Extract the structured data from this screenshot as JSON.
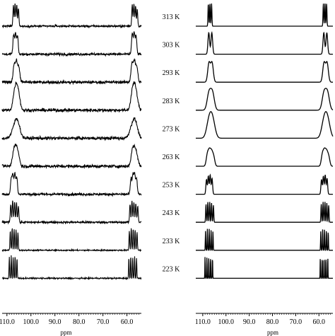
{
  "chart_data": [
    {
      "type": "line",
      "xlabel": "ppm",
      "ylabel": "",
      "x_reversed": true,
      "xlim": [
        112,
        54
      ],
      "xticks": [
        "110.0",
        "100.0",
        "90.0",
        "80.0",
        "70.0",
        "60.0"
      ],
      "series": [
        {
          "temperature": "313 K",
          "kind": "experimental",
          "peaks": [
            {
              "ppm": 107.3,
              "height": 0.9,
              "width": 0.2
            },
            {
              "ppm": 106.6,
              "height": 1.0,
              "width": 0.2
            },
            {
              "ppm": 105.9,
              "height": 0.95,
              "width": 0.2
            },
            {
              "ppm": 105.2,
              "height": 0.8,
              "width": 0.2
            },
            {
              "ppm": 57.8,
              "height": 0.95,
              "width": 0.2
            },
            {
              "ppm": 57.1,
              "height": 1.0,
              "width": 0.2
            },
            {
              "ppm": 56.4,
              "height": 0.9,
              "width": 0.2
            },
            {
              "ppm": 55.7,
              "height": 0.75,
              "width": 0.2
            }
          ],
          "noise": 0.07
        },
        {
          "temperature": "303 K",
          "kind": "experimental",
          "peaks": [
            {
              "ppm": 107.2,
              "height": 0.85,
              "width": 0.3
            },
            {
              "ppm": 106.4,
              "height": 0.9,
              "width": 0.3
            },
            {
              "ppm": 105.6,
              "height": 0.8,
              "width": 0.3
            },
            {
              "ppm": 57.8,
              "height": 0.9,
              "width": 0.3
            },
            {
              "ppm": 57.0,
              "height": 0.95,
              "width": 0.3
            },
            {
              "ppm": 56.2,
              "height": 0.8,
              "width": 0.3
            }
          ],
          "noise": 0.09
        },
        {
          "temperature": "293 K",
          "kind": "experimental",
          "peaks": [
            {
              "ppm": 107.0,
              "height": 0.75,
              "width": 0.45
            },
            {
              "ppm": 106.0,
              "height": 0.85,
              "width": 0.45
            },
            {
              "ppm": 105.0,
              "height": 0.6,
              "width": 0.45
            },
            {
              "ppm": 57.9,
              "height": 0.8,
              "width": 0.45
            },
            {
              "ppm": 56.9,
              "height": 0.85,
              "width": 0.45
            },
            {
              "ppm": 55.9,
              "height": 0.65,
              "width": 0.45
            }
          ],
          "noise": 0.11
        },
        {
          "temperature": "283 K",
          "kind": "experimental",
          "peaks": [
            {
              "ppm": 106.9,
              "height": 0.6,
              "width": 0.7
            },
            {
              "ppm": 106.0,
              "height": 0.7,
              "width": 0.7
            },
            {
              "ppm": 105.1,
              "height": 0.55,
              "width": 0.7
            },
            {
              "ppm": 57.8,
              "height": 0.65,
              "width": 0.7
            },
            {
              "ppm": 56.9,
              "height": 0.7,
              "width": 0.7
            },
            {
              "ppm": 56.0,
              "height": 0.5,
              "width": 0.7
            }
          ],
          "noise": 0.12
        },
        {
          "temperature": "273 K",
          "kind": "experimental",
          "peaks": [
            {
              "ppm": 106.6,
              "height": 0.55,
              "width": 1.2
            },
            {
              "ppm": 105.4,
              "height": 0.45,
              "width": 1.0
            },
            {
              "ppm": 57.6,
              "height": 0.55,
              "width": 1.2
            },
            {
              "ppm": 56.4,
              "height": 0.45,
              "width": 1.0
            }
          ],
          "noise": 0.12
        },
        {
          "temperature": "263 K",
          "kind": "experimental",
          "peaks": [
            {
              "ppm": 107.2,
              "height": 0.55,
              "width": 0.6
            },
            {
              "ppm": 106.3,
              "height": 0.65,
              "width": 0.6
            },
            {
              "ppm": 105.3,
              "height": 0.5,
              "width": 0.6
            },
            {
              "ppm": 57.8,
              "height": 0.55,
              "width": 0.6
            },
            {
              "ppm": 56.9,
              "height": 0.6,
              "width": 0.6
            },
            {
              "ppm": 55.9,
              "height": 0.45,
              "width": 0.6
            }
          ],
          "noise": 0.12
        },
        {
          "temperature": "253 K",
          "kind": "experimental",
          "peaks": [
            {
              "ppm": 108.2,
              "height": 0.7,
              "width": 0.3
            },
            {
              "ppm": 107.5,
              "height": 0.85,
              "width": 0.3
            },
            {
              "ppm": 106.7,
              "height": 0.9,
              "width": 0.3
            },
            {
              "ppm": 105.9,
              "height": 0.75,
              "width": 0.3
            },
            {
              "ppm": 58.3,
              "height": 0.7,
              "width": 0.3
            },
            {
              "ppm": 57.5,
              "height": 0.85,
              "width": 0.3
            },
            {
              "ppm": 56.8,
              "height": 0.9,
              "width": 0.3
            },
            {
              "ppm": 56.0,
              "height": 0.7,
              "width": 0.3
            }
          ],
          "noise": 0.09
        },
        {
          "temperature": "243 K",
          "kind": "experimental",
          "peaks": [
            {
              "ppm": 108.4,
              "height": 0.8,
              "width": 0.2
            },
            {
              "ppm": 107.6,
              "height": 0.95,
              "width": 0.2
            },
            {
              "ppm": 106.8,
              "height": 0.9,
              "width": 0.2
            },
            {
              "ppm": 106.0,
              "height": 0.85,
              "width": 0.2
            },
            {
              "ppm": 105.2,
              "height": 0.7,
              "width": 0.2
            },
            {
              "ppm": 58.7,
              "height": 0.8,
              "width": 0.2
            },
            {
              "ppm": 57.9,
              "height": 0.95,
              "width": 0.2
            },
            {
              "ppm": 57.1,
              "height": 0.9,
              "width": 0.2
            },
            {
              "ppm": 56.3,
              "height": 0.85,
              "width": 0.2
            },
            {
              "ppm": 55.5,
              "height": 0.7,
              "width": 0.2
            }
          ],
          "noise": 0.08
        },
        {
          "temperature": "233 K",
          "kind": "experimental",
          "peaks": [
            {
              "ppm": 108.6,
              "height": 0.85,
              "width": 0.15
            },
            {
              "ppm": 107.8,
              "height": 1.0,
              "width": 0.15
            },
            {
              "ppm": 107.0,
              "height": 0.95,
              "width": 0.15
            },
            {
              "ppm": 106.2,
              "height": 0.9,
              "width": 0.15
            },
            {
              "ppm": 105.4,
              "height": 0.8,
              "width": 0.15
            },
            {
              "ppm": 59.0,
              "height": 0.85,
              "width": 0.15
            },
            {
              "ppm": 58.2,
              "height": 1.0,
              "width": 0.15
            },
            {
              "ppm": 57.4,
              "height": 0.95,
              "width": 0.15
            },
            {
              "ppm": 56.6,
              "height": 0.9,
              "width": 0.15
            },
            {
              "ppm": 55.8,
              "height": 0.8,
              "width": 0.15
            }
          ],
          "noise": 0.05
        },
        {
          "temperature": "223 K",
          "kind": "experimental",
          "peaks": [
            {
              "ppm": 109.0,
              "height": 0.95,
              "width": 0.12
            },
            {
              "ppm": 108.2,
              "height": 1.0,
              "width": 0.12
            },
            {
              "ppm": 107.4,
              "height": 0.95,
              "width": 0.12
            },
            {
              "ppm": 106.6,
              "height": 1.0,
              "width": 0.12
            },
            {
              "ppm": 105.8,
              "height": 0.9,
              "width": 0.12
            },
            {
              "ppm": 59.2,
              "height": 0.9,
              "width": 0.12
            },
            {
              "ppm": 58.4,
              "height": 1.0,
              "width": 0.12
            },
            {
              "ppm": 57.6,
              "height": 0.95,
              "width": 0.12
            },
            {
              "ppm": 56.8,
              "height": 1.0,
              "width": 0.12
            },
            {
              "ppm": 56.0,
              "height": 0.9,
              "width": 0.12
            }
          ],
          "noise": 0.05
        }
      ]
    },
    {
      "type": "line",
      "xlabel": "ppm",
      "ylabel": "",
      "x_reversed": true,
      "xlim": [
        113,
        54
      ],
      "xticks": [
        "110.0",
        "100.0",
        "90.0",
        "80.0",
        "70.0",
        "60.0"
      ],
      "series": [
        {
          "temperature": "313 K",
          "kind": "simulated",
          "peaks": [
            {
              "ppm": 107.6,
              "height": 1.0,
              "width": 0.15
            },
            {
              "ppm": 106.9,
              "height": 1.0,
              "width": 0.15
            },
            {
              "ppm": 106.2,
              "height": 1.0,
              "width": 0.15
            },
            {
              "ppm": 58.1,
              "height": 1.0,
              "width": 0.15
            },
            {
              "ppm": 57.4,
              "height": 1.0,
              "width": 0.15
            },
            {
              "ppm": 56.7,
              "height": 1.0,
              "width": 0.15
            }
          ]
        },
        {
          "temperature": "303 K",
          "kind": "simulated",
          "peaks": [
            {
              "ppm": 107.4,
              "height": 0.95,
              "width": 0.35
            },
            {
              "ppm": 106.1,
              "height": 0.95,
              "width": 0.35
            },
            {
              "ppm": 57.9,
              "height": 0.95,
              "width": 0.35
            },
            {
              "ppm": 56.6,
              "height": 0.95,
              "width": 0.35
            }
          ]
        },
        {
          "temperature": "293 K",
          "kind": "simulated",
          "peaks": [
            {
              "ppm": 107.3,
              "height": 0.85,
              "width": 0.55
            },
            {
              "ppm": 106.0,
              "height": 0.85,
              "width": 0.55
            },
            {
              "ppm": 57.8,
              "height": 0.85,
              "width": 0.55
            },
            {
              "ppm": 56.5,
              "height": 0.85,
              "width": 0.55
            }
          ]
        },
        {
          "temperature": "283 K",
          "kind": "simulated",
          "peaks": [
            {
              "ppm": 107.3,
              "height": 0.75,
              "width": 0.8
            },
            {
              "ppm": 105.8,
              "height": 0.75,
              "width": 0.8
            },
            {
              "ppm": 57.8,
              "height": 0.75,
              "width": 0.8
            },
            {
              "ppm": 56.3,
              "height": 0.75,
              "width": 0.8
            }
          ]
        },
        {
          "temperature": "273 K",
          "kind": "simulated",
          "peaks": [
            {
              "ppm": 107.5,
              "height": 0.55,
              "width": 1.0
            },
            {
              "ppm": 106.4,
              "height": 0.6,
              "width": 1.0
            },
            {
              "ppm": 105.4,
              "height": 0.45,
              "width": 1.0
            },
            {
              "ppm": 58.0,
              "height": 0.55,
              "width": 1.0
            },
            {
              "ppm": 56.9,
              "height": 0.6,
              "width": 1.0
            },
            {
              "ppm": 55.9,
              "height": 0.45,
              "width": 1.0
            }
          ]
        },
        {
          "temperature": "263 K",
          "kind": "simulated",
          "peaks": [
            {
              "ppm": 108.0,
              "height": 0.5,
              "width": 0.5
            },
            {
              "ppm": 107.1,
              "height": 0.6,
              "width": 0.5
            },
            {
              "ppm": 106.2,
              "height": 0.55,
              "width": 0.5
            },
            {
              "ppm": 105.3,
              "height": 0.4,
              "width": 0.5
            },
            {
              "ppm": 58.5,
              "height": 0.5,
              "width": 0.5
            },
            {
              "ppm": 57.6,
              "height": 0.6,
              "width": 0.5
            },
            {
              "ppm": 56.7,
              "height": 0.55,
              "width": 0.5
            },
            {
              "ppm": 55.8,
              "height": 0.4,
              "width": 0.5
            }
          ]
        },
        {
          "temperature": "253 K",
          "kind": "simulated",
          "peaks": [
            {
              "ppm": 108.4,
              "height": 0.65,
              "width": 0.25
            },
            {
              "ppm": 107.6,
              "height": 0.8,
              "width": 0.25
            },
            {
              "ppm": 106.8,
              "height": 0.85,
              "width": 0.25
            },
            {
              "ppm": 106.0,
              "height": 0.7,
              "width": 0.25
            },
            {
              "ppm": 58.9,
              "height": 0.65,
              "width": 0.25
            },
            {
              "ppm": 58.1,
              "height": 0.8,
              "width": 0.25
            },
            {
              "ppm": 57.3,
              "height": 0.85,
              "width": 0.25
            },
            {
              "ppm": 56.5,
              "height": 0.7,
              "width": 0.25
            }
          ]
        },
        {
          "temperature": "243 K",
          "kind": "simulated",
          "peaks": [
            {
              "ppm": 108.6,
              "height": 0.8,
              "width": 0.15
            },
            {
              "ppm": 107.8,
              "height": 0.9,
              "width": 0.15
            },
            {
              "ppm": 107.0,
              "height": 0.9,
              "width": 0.15
            },
            {
              "ppm": 106.2,
              "height": 0.85,
              "width": 0.15
            },
            {
              "ppm": 105.4,
              "height": 0.75,
              "width": 0.15
            },
            {
              "ppm": 59.0,
              "height": 0.8,
              "width": 0.15
            },
            {
              "ppm": 58.2,
              "height": 0.9,
              "width": 0.15
            },
            {
              "ppm": 57.4,
              "height": 0.9,
              "width": 0.15
            },
            {
              "ppm": 56.6,
              "height": 0.85,
              "width": 0.15
            },
            {
              "ppm": 55.8,
              "height": 0.75,
              "width": 0.15
            }
          ]
        },
        {
          "temperature": "233 K",
          "kind": "simulated",
          "peaks": [
            {
              "ppm": 108.8,
              "height": 0.85,
              "width": 0.1
            },
            {
              "ppm": 108.0,
              "height": 0.95,
              "width": 0.1
            },
            {
              "ppm": 107.2,
              "height": 0.95,
              "width": 0.1
            },
            {
              "ppm": 106.4,
              "height": 0.9,
              "width": 0.1
            },
            {
              "ppm": 105.6,
              "height": 0.85,
              "width": 0.1
            },
            {
              "ppm": 59.2,
              "height": 0.85,
              "width": 0.1
            },
            {
              "ppm": 58.4,
              "height": 0.95,
              "width": 0.1
            },
            {
              "ppm": 57.6,
              "height": 0.95,
              "width": 0.1
            },
            {
              "ppm": 56.8,
              "height": 0.9,
              "width": 0.1
            },
            {
              "ppm": 56.0,
              "height": 0.85,
              "width": 0.1
            }
          ]
        },
        {
          "temperature": "223 K",
          "kind": "simulated",
          "peaks": [
            {
              "ppm": 109.0,
              "height": 1.0,
              "width": 0.08
            },
            {
              "ppm": 108.2,
              "height": 1.0,
              "width": 0.08
            },
            {
              "ppm": 107.4,
              "height": 1.0,
              "width": 0.08
            },
            {
              "ppm": 106.6,
              "height": 1.0,
              "width": 0.08
            },
            {
              "ppm": 105.8,
              "height": 1.0,
              "width": 0.08
            },
            {
              "ppm": 59.4,
              "height": 1.0,
              "width": 0.08
            },
            {
              "ppm": 58.6,
              "height": 1.0,
              "width": 0.08
            },
            {
              "ppm": 57.8,
              "height": 1.0,
              "width": 0.08
            },
            {
              "ppm": 57.0,
              "height": 1.0,
              "width": 0.08
            },
            {
              "ppm": 56.2,
              "height": 1.0,
              "width": 0.08
            }
          ]
        }
      ]
    }
  ]
}
